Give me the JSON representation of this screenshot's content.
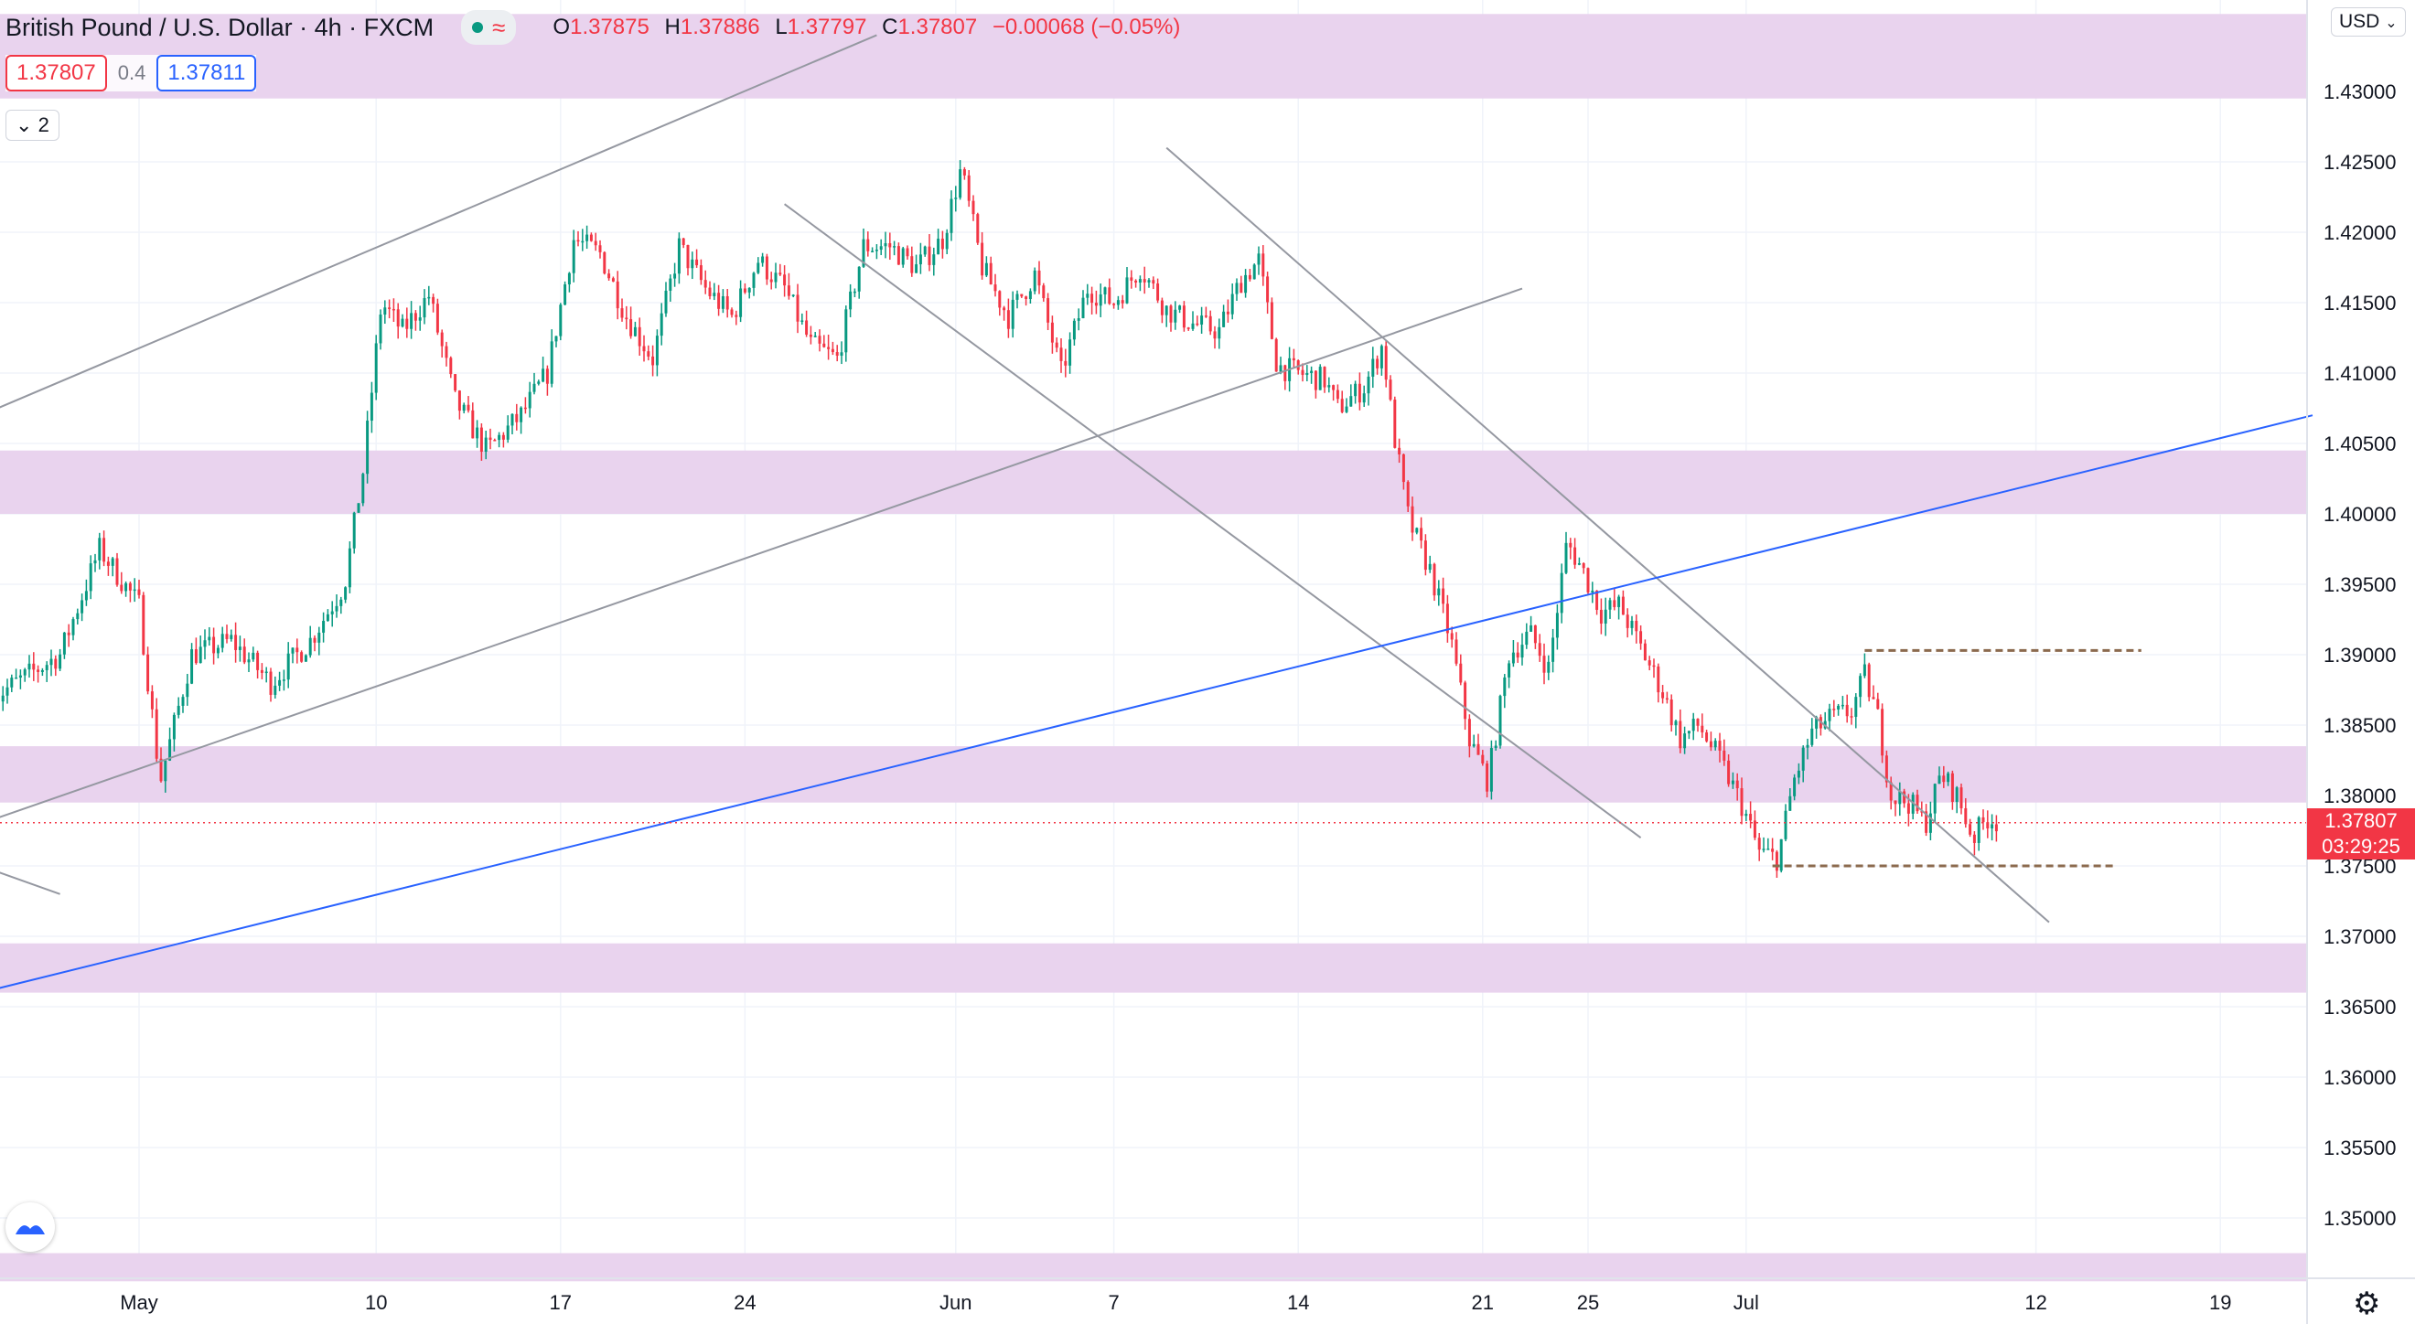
{
  "header": {
    "title": "British Pound / U.S. Dollar · 4h · FXCM",
    "ohlc": [
      {
        "k": "O",
        "v": "1.37875"
      },
      {
        "k": "H",
        "v": "1.37886"
      },
      {
        "k": "L",
        "v": "1.37797"
      },
      {
        "k": "C",
        "v": "1.37807"
      }
    ],
    "change": "−0.00068 (−0.05%)",
    "sell_price": "1.37807",
    "spread": "0.4",
    "buy_price": "1.37811",
    "indicator_count": "2",
    "currency": "USD",
    "colors": {
      "up": "#089981",
      "down": "#f23645",
      "buy": "#2962ff",
      "zone": "#e9d3ee"
    }
  },
  "chart_data": {
    "type": "candlestick",
    "ylim": [
      1.344,
      1.433
    ],
    "y_ticks": [
      "1.43000",
      "1.42500",
      "1.42000",
      "1.41500",
      "1.41000",
      "1.40500",
      "1.40000",
      "1.39500",
      "1.39000",
      "1.38500",
      "1.38000",
      "1.37500",
      "1.37000",
      "1.36500",
      "1.36000",
      "1.35500",
      "1.35000"
    ],
    "x_ticks": [
      {
        "label": "May",
        "day": 1
      },
      {
        "label": "10",
        "day": 10
      },
      {
        "label": "17",
        "day": 17
      },
      {
        "label": "24",
        "day": 24
      },
      {
        "label": "Jun",
        "day": 32
      },
      {
        "label": "7",
        "day": 38
      },
      {
        "label": "14",
        "day": 45
      },
      {
        "label": "21",
        "day": 52
      },
      {
        "label": "25",
        "day": 56
      },
      {
        "label": "Jul",
        "day": 62
      },
      {
        "label": "12",
        "day": 73
      },
      {
        "label": "19",
        "day": 80
      }
    ],
    "last_price": "1.37807",
    "countdown": "03:29:25",
    "zones": [
      [
        1.4295,
        1.4355
      ],
      [
        1.4,
        1.4045
      ],
      [
        1.3795,
        1.3835
      ],
      [
        1.366,
        1.3695
      ],
      [
        1.3455,
        1.3475
      ]
    ],
    "price_path": [
      [
        -4.5,
        1.387
      ],
      [
        -2,
        1.39
      ],
      [
        -0.5,
        1.3975
      ],
      [
        1,
        1.3935
      ],
      [
        1.8,
        1.381
      ],
      [
        3,
        1.39
      ],
      [
        4.5,
        1.391
      ],
      [
        6,
        1.388
      ],
      [
        7.5,
        1.391
      ],
      [
        8.8,
        1.395
      ],
      [
        9.5,
        1.403
      ],
      [
        10.2,
        1.415
      ],
      [
        11,
        1.413
      ],
      [
        12,
        1.4155
      ],
      [
        13,
        1.408
      ],
      [
        14.2,
        1.4045
      ],
      [
        15.5,
        1.407
      ],
      [
        16.5,
        1.41
      ],
      [
        17.5,
        1.4195
      ],
      [
        18.5,
        1.4185
      ],
      [
        19.5,
        1.414
      ],
      [
        20.5,
        1.411
      ],
      [
        21.5,
        1.419
      ],
      [
        22.5,
        1.416
      ],
      [
        23.5,
        1.414
      ],
      [
        24.5,
        1.418
      ],
      [
        25.5,
        1.416
      ],
      [
        26.5,
        1.412
      ],
      [
        27.5,
        1.411
      ],
      [
        28.5,
        1.419
      ],
      [
        29.5,
        1.419
      ],
      [
        30.5,
        1.4175
      ],
      [
        31.5,
        1.4195
      ],
      [
        32.2,
        1.4245
      ],
      [
        33,
        1.4175
      ],
      [
        34,
        1.414
      ],
      [
        35,
        1.417
      ],
      [
        36,
        1.41
      ],
      [
        37,
        1.416
      ],
      [
        38,
        1.415
      ],
      [
        39,
        1.4175
      ],
      [
        40,
        1.4145
      ],
      [
        41,
        1.4135
      ],
      [
        42,
        1.413
      ],
      [
        42.8,
        1.4165
      ],
      [
        43.5,
        1.418
      ],
      [
        44.2,
        1.4105
      ],
      [
        45,
        1.41
      ],
      [
        46,
        1.4095
      ],
      [
        46.5,
        1.4075
      ],
      [
        47.5,
        1.409
      ],
      [
        48.2,
        1.412
      ],
      [
        48.6,
        1.406
      ],
      [
        49.2,
        1.3995
      ],
      [
        50,
        1.396
      ],
      [
        50.8,
        1.391
      ],
      [
        51.5,
        1.384
      ],
      [
        52.2,
        1.381
      ],
      [
        53,
        1.39
      ],
      [
        53.8,
        1.3915
      ],
      [
        54.5,
        1.389
      ],
      [
        55.2,
        1.398
      ],
      [
        55.8,
        1.396
      ],
      [
        56.5,
        1.393
      ],
      [
        57.2,
        1.3935
      ],
      [
        58,
        1.3905
      ],
      [
        58.8,
        1.3875
      ],
      [
        59.5,
        1.384
      ],
      [
        60.2,
        1.385
      ],
      [
        61,
        1.3825
      ],
      [
        61.8,
        1.3795
      ],
      [
        62.5,
        1.376
      ],
      [
        63.2,
        1.3755
      ],
      [
        63.8,
        1.381
      ],
      [
        64.5,
        1.3845
      ],
      [
        65.2,
        1.3855
      ],
      [
        66,
        1.386
      ],
      [
        66.5,
        1.3885
      ],
      [
        67,
        1.3855
      ],
      [
        67.5,
        1.38
      ],
      [
        68.2,
        1.3795
      ],
      [
        68.8,
        1.378
      ],
      [
        69.4,
        1.3815
      ],
      [
        70,
        1.38
      ],
      [
        70.6,
        1.377
      ],
      [
        71.2,
        1.3785
      ],
      [
        71.6,
        1.37807
      ]
    ],
    "trend_lines": [
      {
        "color": "#9598a1",
        "points": [
          [
            -5,
            1.407
          ],
          [
            29,
            1.434
          ]
        ]
      },
      {
        "color": "#9598a1",
        "points": [
          [
            -5,
            1.378
          ],
          [
            53.5,
            1.416
          ]
        ]
      },
      {
        "color": "#9598a1",
        "points": [
          [
            25.5,
            1.422
          ],
          [
            58,
            1.377
          ]
        ]
      },
      {
        "color": "#9598a1",
        "points": [
          [
            40,
            1.426
          ],
          [
            73.5,
            1.371
          ]
        ]
      },
      {
        "color": "#9598a1",
        "points": [
          [
            -5,
            1.375
          ],
          [
            -2,
            1.373
          ]
        ]
      },
      {
        "color": "#2962ff",
        "points": [
          [
            -5,
            1.366
          ],
          [
            83.5,
            1.407
          ]
        ]
      },
      {
        "color": "#8b6a4e",
        "dashed": true,
        "points": [
          [
            66.5,
            1.3903
          ],
          [
            77,
            1.3903
          ]
        ]
      },
      {
        "color": "#8b6a4e",
        "dashed": true,
        "points": [
          [
            63,
            1.375
          ],
          [
            76,
            1.375
          ]
        ]
      }
    ]
  }
}
